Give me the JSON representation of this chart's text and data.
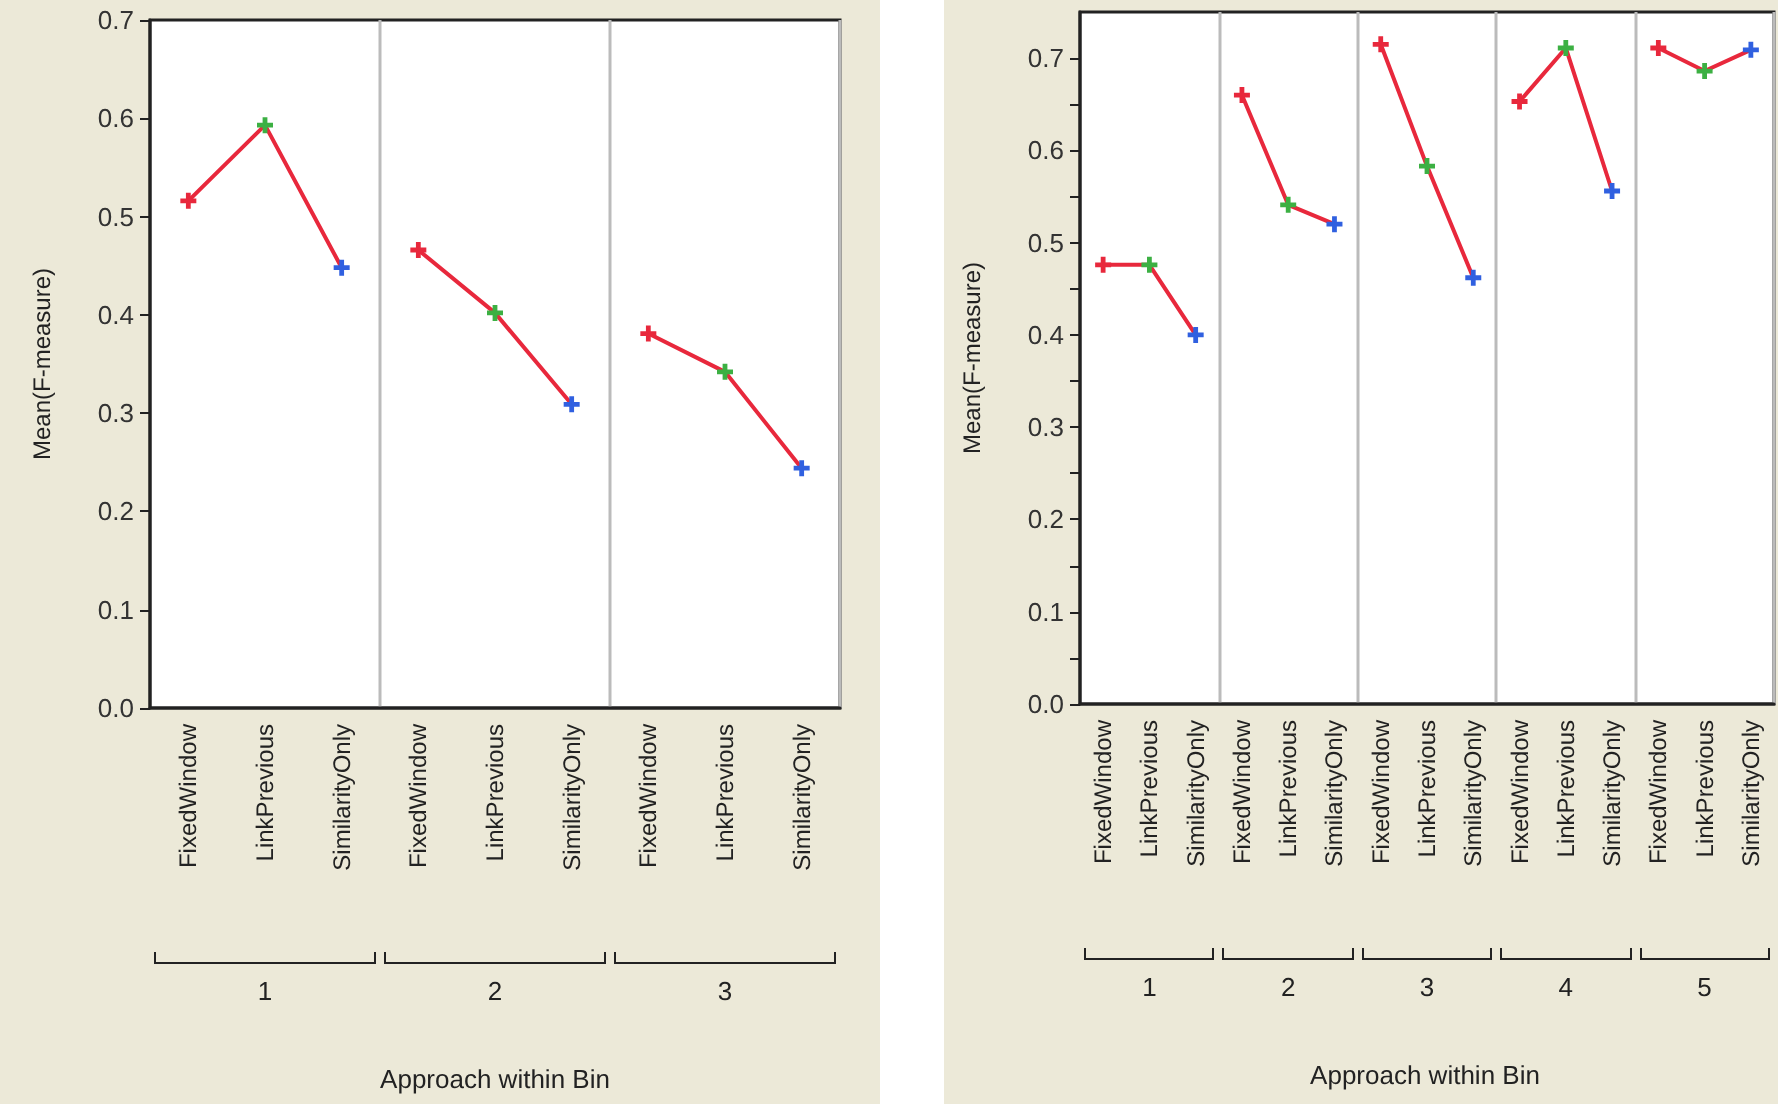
{
  "chart_data": [
    {
      "type": "line",
      "xlabel": "Approach within Bin",
      "ylabel": "Mean(F-measure)",
      "categories": [
        "FixedWindow",
        "LinkPrevious",
        "SimilarityOnly",
        "FixedWindow",
        "LinkPrevious",
        "SimilarityOnly",
        "FixedWindow",
        "LinkPrevious",
        "SimilarityOnly"
      ],
      "series": [
        {
          "color": "#e8283c",
          "colors": [
            "#e8283c",
            "#3cb043",
            "#3060e0",
            null,
            null,
            null,
            null,
            null,
            null
          ],
          "values": [
            0.516,
            0.593,
            0.448,
            null,
            null,
            null,
            null,
            null,
            null
          ]
        },
        {
          "color": "#e8283c",
          "colors": [
            null,
            null,
            null,
            "#e8283c",
            "#3cb043",
            "#3060e0",
            null,
            null,
            null
          ],
          "values": [
            null,
            null,
            null,
            0.466,
            0.402,
            0.309,
            null,
            null,
            null
          ]
        },
        {
          "color": "#e8283c",
          "colors": [
            null,
            null,
            null,
            null,
            null,
            null,
            "#e8283c",
            "#3cb043",
            "#3060e0"
          ],
          "values": [
            null,
            null,
            null,
            null,
            null,
            null,
            0.381,
            0.342,
            0.244
          ]
        }
      ],
      "annotations": [
        "1",
        "2",
        "3"
      ],
      "ylim": [
        0,
        0.7
      ],
      "yticks": [
        {
          "value": 0,
          "label": "0.0"
        },
        {
          "value": 0.1,
          "label": "0.1"
        },
        {
          "value": 0.2,
          "label": "0.2"
        },
        {
          "value": 0.3,
          "label": "0.3"
        },
        {
          "value": 0.4,
          "label": "0.4"
        },
        {
          "value": 0.5,
          "label": "0.5"
        },
        {
          "value": 0.6,
          "label": "0.6"
        },
        {
          "value": 0.7,
          "label": "0.7"
        }
      ],
      "marker": "cross"
    },
    {
      "type": "line",
      "xlabel": "Approach within Bin",
      "ylabel": "Mean(F-measure)",
      "categories": [
        "FixedWindow",
        "LinkPrevious",
        "SimilarityOnly",
        "FixedWindow",
        "LinkPrevious",
        "SimilarityOnly",
        "FixedWindow",
        "LinkPrevious",
        "SimilarityOnly",
        "FixedWindow",
        "LinkPrevious",
        "SimilarityOnly",
        "FixedWindow",
        "LinkPrevious",
        "SimilarityOnly"
      ],
      "series": [
        {
          "color": "#e8283c",
          "colors": [
            "#e8283c",
            "#3cb043",
            "#3060e0",
            null,
            null,
            null,
            null,
            null,
            null,
            null,
            null,
            null,
            null,
            null,
            null
          ],
          "values": [
            0.476,
            0.476,
            0.4,
            null,
            null,
            null,
            null,
            null,
            null,
            null,
            null,
            null,
            null,
            null,
            null
          ]
        },
        {
          "color": "#e8283c",
          "colors": [
            null,
            null,
            null,
            "#e8283c",
            "#3cb043",
            "#3060e0",
            null,
            null,
            null,
            null,
            null,
            null,
            null,
            null,
            null
          ],
          "values": [
            null,
            null,
            null,
            0.66,
            0.541,
            0.52,
            null,
            null,
            null,
            null,
            null,
            null,
            null,
            null,
            null
          ]
        },
        {
          "color": "#e8283c",
          "colors": [
            null,
            null,
            null,
            null,
            null,
            null,
            "#e8283c",
            "#3cb043",
            "#3060e0",
            null,
            null,
            null,
            null,
            null,
            null
          ],
          "values": [
            null,
            null,
            null,
            null,
            null,
            null,
            0.715,
            0.583,
            0.462,
            null,
            null,
            null,
            null,
            null,
            null
          ]
        },
        {
          "color": "#e8283c",
          "colors": [
            null,
            null,
            null,
            null,
            null,
            null,
            null,
            null,
            null,
            "#e8283c",
            "#3cb043",
            "#3060e0",
            null,
            null,
            null
          ],
          "values": [
            null,
            null,
            null,
            null,
            null,
            null,
            null,
            null,
            null,
            0.653,
            0.711,
            0.556,
            null,
            null,
            null
          ]
        },
        {
          "color": "#e8283c",
          "colors": [
            null,
            null,
            null,
            null,
            null,
            null,
            null,
            null,
            null,
            null,
            null,
            null,
            "#e8283c",
            "#3cb043",
            "#3060e0"
          ],
          "values": [
            null,
            null,
            null,
            null,
            null,
            null,
            null,
            null,
            null,
            null,
            null,
            null,
            0.711,
            0.686,
            0.709
          ]
        }
      ],
      "annotations": [
        "1",
        "2",
        "3",
        "4",
        "5"
      ],
      "ylim": [
        0,
        0.75
      ],
      "yticks": [
        {
          "value": 0,
          "label": "0.0"
        },
        {
          "value": 0.05,
          "label": null
        },
        {
          "value": 0.1,
          "label": "0.1"
        },
        {
          "value": 0.15,
          "label": null
        },
        {
          "value": 0.2,
          "label": "0.2"
        },
        {
          "value": 0.25,
          "label": null
        },
        {
          "value": 0.3,
          "label": "0.3"
        },
        {
          "value": 0.35,
          "label": null
        },
        {
          "value": 0.4,
          "label": "0.4"
        },
        {
          "value": 0.45,
          "label": null
        },
        {
          "value": 0.5,
          "label": "0.5"
        },
        {
          "value": 0.55,
          "label": null
        },
        {
          "value": 0.6,
          "label": "0.6"
        },
        {
          "value": 0.65,
          "label": null
        },
        {
          "value": 0.7,
          "label": "0.7"
        }
      ],
      "marker": "cross"
    }
  ]
}
